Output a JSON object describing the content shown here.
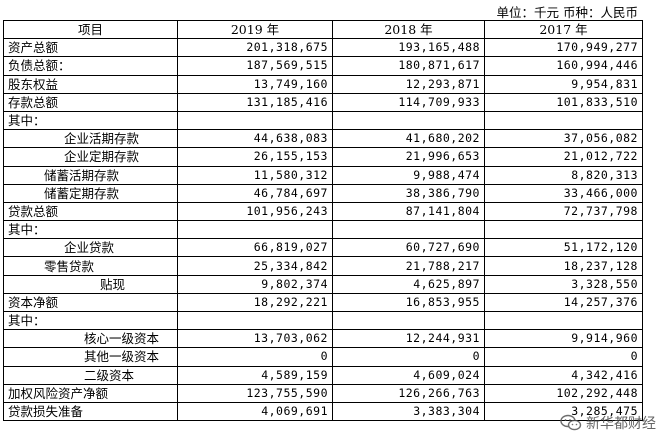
{
  "unit_note": "单位：千元    币种：人民币",
  "headers": [
    "项目",
    "2019 年",
    "2018 年",
    "2017 年"
  ],
  "rows": [
    {
      "label": "资产总额",
      "indent": 1,
      "values": [
        "201,318,675",
        "193,165,488",
        "170,949,277"
      ]
    },
    {
      "label": "负债总额：",
      "indent": 1,
      "values": [
        "187,569,515",
        "180,871,617",
        "160,994,446"
      ]
    },
    {
      "label": "股东权益",
      "indent": 1,
      "values": [
        "13,749,160",
        "12,293,871",
        "9,954,831"
      ]
    },
    {
      "label": "存款总额",
      "indent": 1,
      "values": [
        "131,185,416",
        "114,709,933",
        "101,833,510"
      ]
    },
    {
      "label": "其中：",
      "indent": 1,
      "values": [
        "",
        "",
        ""
      ]
    },
    {
      "label": "企业活期存款",
      "indent": 3,
      "values": [
        "44,638,083",
        "41,680,202",
        "37,056,082"
      ]
    },
    {
      "label": "企业定期存款",
      "indent": 3,
      "values": [
        "26,155,153",
        "21,996,653",
        "21,012,722"
      ]
    },
    {
      "label": "储蓄活期存款",
      "indent": 2,
      "values": [
        "11,580,312",
        "9,988,474",
        "8,820,313"
      ]
    },
    {
      "label": "储蓄定期存款",
      "indent": 2,
      "values": [
        "46,784,697",
        "38,386,790",
        "33,466,000"
      ]
    },
    {
      "label": "贷款总额",
      "indent": 1,
      "values": [
        "101,956,243",
        "87,141,804",
        "72,737,798"
      ]
    },
    {
      "label": "其中：",
      "indent": 1,
      "values": [
        "",
        "",
        ""
      ]
    },
    {
      "label": "企业贷款",
      "indent": 3,
      "values": [
        "66,819,027",
        "60,727,690",
        "51,172,120"
      ]
    },
    {
      "label": "零售贷款",
      "indent": 2,
      "values": [
        "25,334,842",
        "21,788,217",
        "18,237,128"
      ]
    },
    {
      "label": "贴现",
      "indent": 5,
      "values": [
        "9,802,374",
        "4,625,897",
        "3,328,550"
      ]
    },
    {
      "label": "资本净额",
      "indent": 1,
      "values": [
        "18,292,221",
        "16,853,955",
        "14,257,376"
      ]
    },
    {
      "label": "其中：",
      "indent": 1,
      "values": [
        "",
        "",
        ""
      ]
    },
    {
      "label": "核心一级资本",
      "indent": 4,
      "values": [
        "13,703,062",
        "12,244,931",
        "9,914,960"
      ]
    },
    {
      "label": "其他一级资本",
      "indent": 4,
      "values": [
        "0",
        "0",
        "0"
      ]
    },
    {
      "label": "二级资本",
      "indent": 4,
      "values": [
        "4,589,159",
        "4,609,024",
        "4,342,416"
      ]
    },
    {
      "label": "加权风险资产净额",
      "indent": 1,
      "values": [
        "123,755,590",
        "126,266,763",
        "102,292,448"
      ]
    },
    {
      "label": "贷款损失准备",
      "indent": 1,
      "values": [
        "4,069,691",
        "3,383,304",
        "3,285,475"
      ]
    }
  ],
  "watermark": {
    "text": "新华都财经",
    "icon": "wechat-icon"
  }
}
